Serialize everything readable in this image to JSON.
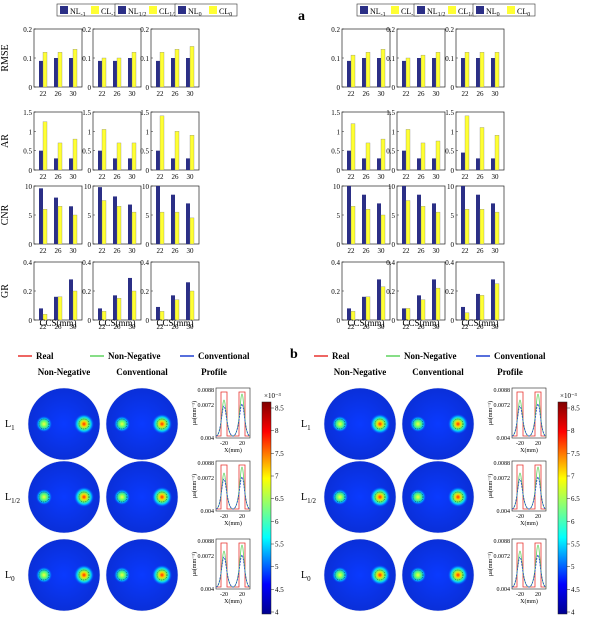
{
  "panel_labels": [
    "a",
    "b"
  ],
  "legend_bar": [
    {
      "nl": "NL",
      "nl_sub": "-1",
      "cl": "CL",
      "cl_sub": "-1"
    },
    {
      "nl": "NL",
      "nl_sub": "1/2",
      "cl": "CL",
      "cl_sub": "1/2"
    },
    {
      "nl": "NL",
      "nl_sub": "0",
      "cl": "CL",
      "cl_sub": "0"
    }
  ],
  "legend_bar_right": [
    {
      "nl": "NL",
      "nl_sub": "-1",
      "cl": "CL",
      "cl_sub": "-1"
    },
    {
      "nl": "NL",
      "nl_sub": "1/2",
      "cl": "CL",
      "cl_sub": "1/2"
    },
    {
      "nl": "NL",
      "nl_sub": "0",
      "cl": "CL",
      "cl_sub": "0"
    }
  ],
  "metric_labels": [
    "RMSE",
    "AR",
    "CNR",
    "GR"
  ],
  "x_axis_label": "CCS(mm)",
  "line_legend": [
    "Real",
    "Non-Negative",
    "Conventional"
  ],
  "image_headers": [
    "Non-Negative",
    "Conventional",
    "Profile"
  ],
  "row_labels": [
    {
      "main": "L",
      "sub": "1"
    },
    {
      "main": "L",
      "sub": "1/2"
    },
    {
      "main": "L",
      "sub": "0"
    }
  ],
  "profile_axis": {
    "ylabel": "μa(mm⁻¹)",
    "xlabel": "X(mm)",
    "yticks": [
      "0.0088",
      "0.0072",
      "0.004"
    ],
    "xticks": [
      "-20",
      "20"
    ]
  },
  "colorbar": {
    "exponent": "×10⁻³",
    "ticks": [
      "8.5",
      "8",
      "7.5",
      "7",
      "6.5",
      "6",
      "5.5",
      "5",
      "4.5",
      "4"
    ]
  },
  "colors": {
    "nl": "#2b2f86",
    "cl": "#ffff33",
    "real": "#e8332f",
    "nonneg": "#5fd35f",
    "conv": "#1f3fd0"
  },
  "chart_data": [
    {
      "type": "bar",
      "panel": "a",
      "categories": [
        "22",
        "26",
        "30"
      ],
      "metrics": [
        {
          "ylabel": "RMSE",
          "ylim": [
            0,
            0.2
          ],
          "yticks": [
            "0",
            "0.1",
            "0.2"
          ],
          "groups": [
            {
              "nl": [
                0.09,
                0.1,
                0.1
              ],
              "cl": [
                0.12,
                0.12,
                0.13
              ]
            },
            {
              "nl": [
                0.09,
                0.09,
                0.1
              ],
              "cl": [
                0.1,
                0.1,
                0.12
              ]
            },
            {
              "nl": [
                0.09,
                0.1,
                0.1
              ],
              "cl": [
                0.12,
                0.13,
                0.14
              ]
            }
          ]
        },
        {
          "ylabel": "AR",
          "ylim": [
            0,
            1.5
          ],
          "yticks": [
            "0",
            "0.5",
            "1",
            "1.5"
          ],
          "groups": [
            {
              "nl": [
                0.5,
                0.3,
                0.3
              ],
              "cl": [
                1.25,
                0.7,
                0.8
              ]
            },
            {
              "nl": [
                0.5,
                0.3,
                0.3
              ],
              "cl": [
                1.05,
                0.7,
                0.7
              ]
            },
            {
              "nl": [
                0.5,
                0.3,
                0.3
              ],
              "cl": [
                1.4,
                1.0,
                0.9
              ]
            }
          ]
        },
        {
          "ylabel": "CNR",
          "ylim": [
            0,
            10
          ],
          "yticks": [
            "0",
            "5",
            "10"
          ],
          "groups": [
            {
              "nl": [
                9.6,
                8.0,
                6.5
              ],
              "cl": [
                6.0,
                6.5,
                5.0
              ]
            },
            {
              "nl": [
                9.8,
                8.2,
                6.8
              ],
              "cl": [
                7.5,
                6.5,
                5.5
              ]
            },
            {
              "nl": [
                10.0,
                8.5,
                7.0
              ],
              "cl": [
                5.5,
                5.5,
                4.5
              ]
            }
          ]
        },
        {
          "ylabel": "GR",
          "ylim": [
            0,
            0.4
          ],
          "yticks": [
            "0",
            "0.2",
            "0.4"
          ],
          "groups": [
            {
              "nl": [
                0.08,
                0.16,
                0.28
              ],
              "cl": [
                0.04,
                0.16,
                0.2
              ]
            },
            {
              "nl": [
                0.08,
                0.17,
                0.29
              ],
              "cl": [
                0.06,
                0.15,
                0.2
              ]
            },
            {
              "nl": [
                0.09,
                0.17,
                0.26
              ],
              "cl": [
                0.06,
                0.14,
                0.2
              ]
            }
          ]
        }
      ]
    },
    {
      "type": "bar",
      "panel": "a-right",
      "categories": [
        "22",
        "26",
        "30"
      ],
      "metrics": [
        {
          "ylabel": "",
          "ylim": [
            0,
            0.2
          ],
          "yticks": [
            "0",
            "0.1",
            "0.2"
          ],
          "groups": [
            {
              "nl": [
                0.09,
                0.1,
                0.1
              ],
              "cl": [
                0.11,
                0.12,
                0.13
              ]
            },
            {
              "nl": [
                0.09,
                0.1,
                0.1
              ],
              "cl": [
                0.1,
                0.11,
                0.12
              ]
            },
            {
              "nl": [
                0.1,
                0.1,
                0.1
              ],
              "cl": [
                0.12,
                0.12,
                0.12
              ]
            }
          ]
        },
        {
          "ylabel": "",
          "ylim": [
            0,
            1.5
          ],
          "yticks": [
            "0",
            "0.5",
            "1",
            "1.5"
          ],
          "groups": [
            {
              "nl": [
                0.5,
                0.3,
                0.3
              ],
              "cl": [
                1.2,
                0.7,
                0.8
              ]
            },
            {
              "nl": [
                0.5,
                0.3,
                0.3
              ],
              "cl": [
                1.05,
                0.7,
                0.75
              ]
            },
            {
              "nl": [
                0.45,
                0.3,
                0.3
              ],
              "cl": [
                1.4,
                1.1,
                0.9
              ]
            }
          ]
        },
        {
          "ylabel": "",
          "ylim": [
            0,
            10
          ],
          "yticks": [
            "0",
            "5",
            "10"
          ],
          "groups": [
            {
              "nl": [
                10.0,
                8.5,
                7.0
              ],
              "cl": [
                6.5,
                6.0,
                5.0
              ]
            },
            {
              "nl": [
                10.0,
                8.5,
                7.0
              ],
              "cl": [
                7.5,
                6.5,
                5.5
              ]
            },
            {
              "nl": [
                10.0,
                8.5,
                7.0
              ],
              "cl": [
                6.0,
                6.0,
                5.5
              ]
            }
          ]
        },
        {
          "ylabel": "",
          "ylim": [
            0,
            0.4
          ],
          "yticks": [
            "0",
            "0.2",
            "0.4"
          ],
          "groups": [
            {
              "nl": [
                0.08,
                0.16,
                0.28
              ],
              "cl": [
                0.06,
                0.16,
                0.23
              ]
            },
            {
              "nl": [
                0.08,
                0.17,
                0.28
              ],
              "cl": [
                0.08,
                0.14,
                0.22
              ]
            },
            {
              "nl": [
                0.09,
                0.18,
                0.28
              ],
              "cl": [
                0.05,
                0.17,
                0.25
              ]
            }
          ]
        }
      ]
    }
  ]
}
